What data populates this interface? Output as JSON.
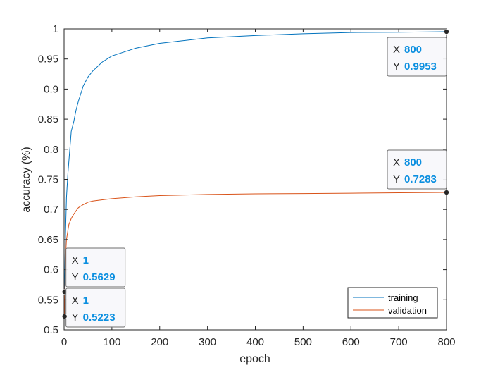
{
  "chart_data": {
    "type": "line",
    "xlabel": "epoch",
    "ylabel": "accuracy (%)",
    "xlim": [
      0,
      800
    ],
    "ylim": [
      0.5,
      1
    ],
    "xticks": [
      0,
      100,
      200,
      300,
      400,
      500,
      600,
      700,
      800
    ],
    "yticks": [
      0.5,
      0.55,
      0.6,
      0.65,
      0.7,
      0.75,
      0.8,
      0.85,
      0.9,
      0.95,
      1
    ],
    "xtick_labels": [
      "0",
      "100",
      "200",
      "300",
      "400",
      "500",
      "600",
      "700",
      "800"
    ],
    "ytick_labels": [
      "0.5",
      "0.55",
      "0.6",
      "0.65",
      "0.7",
      "0.75",
      "0.8",
      "0.85",
      "0.9",
      "0.95",
      "1"
    ],
    "grid": false,
    "legend": "bottom-right",
    "series": [
      {
        "name": "training",
        "color": "#0072BD",
        "x": [
          1,
          2,
          3,
          5,
          8,
          10,
          15,
          20,
          25,
          30,
          40,
          50,
          60,
          80,
          100,
          150,
          200,
          300,
          400,
          500,
          600,
          700,
          800
        ],
        "y": [
          0.5629,
          0.62,
          0.66,
          0.72,
          0.76,
          0.78,
          0.83,
          0.845,
          0.865,
          0.88,
          0.905,
          0.92,
          0.93,
          0.945,
          0.955,
          0.968,
          0.976,
          0.985,
          0.989,
          0.992,
          0.994,
          0.9945,
          0.9953
        ]
      },
      {
        "name": "validation",
        "color": "#D95319",
        "x": [
          1,
          2,
          3,
          5,
          8,
          10,
          15,
          20,
          30,
          40,
          50,
          60,
          80,
          100,
          150,
          200,
          300,
          400,
          500,
          600,
          700,
          800
        ],
        "y": [
          0.5223,
          0.58,
          0.62,
          0.65,
          0.665,
          0.675,
          0.685,
          0.692,
          0.703,
          0.708,
          0.712,
          0.714,
          0.716,
          0.718,
          0.721,
          0.723,
          0.725,
          0.726,
          0.7265,
          0.727,
          0.7278,
          0.7283
        ]
      }
    ],
    "datatips": [
      {
        "x_key": "X",
        "y_key": "Y",
        "x": 800,
        "y": 0.9953,
        "x_text": "800",
        "y_text": "0.9953"
      },
      {
        "x_key": "X",
        "y_key": "Y",
        "x": 800,
        "y": 0.7283,
        "x_text": "800",
        "y_text": "0.7283"
      },
      {
        "x_key": "X",
        "y_key": "Y",
        "x": 1,
        "y": 0.5629,
        "x_text": "1",
        "y_text": "0.5629"
      },
      {
        "x_key": "X",
        "y_key": "Y",
        "x": 1,
        "y": 0.5223,
        "x_text": "1",
        "y_text": "0.5223"
      }
    ]
  }
}
